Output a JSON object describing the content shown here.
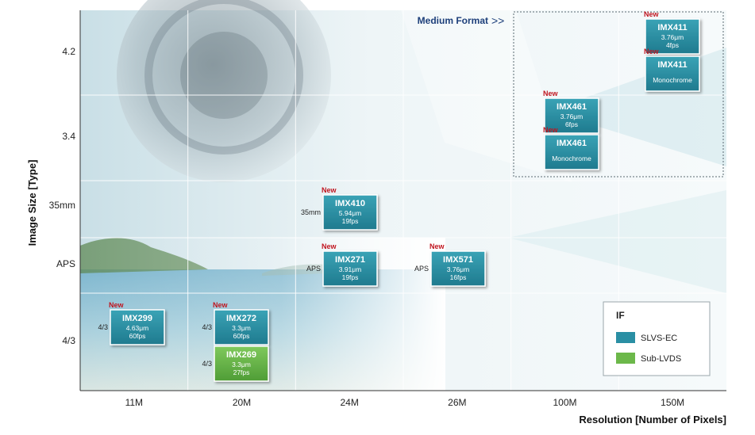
{
  "chart_data": {
    "type": "table",
    "xlabel": "Resolution  [Number of Pixels]",
    "ylabel": "Image Size [Type]",
    "x_categories": [
      "11M",
      "20M",
      "24M",
      "26M",
      "100M",
      "150M"
    ],
    "y_categories": [
      "4.2",
      "3.4",
      "35mm",
      "APS",
      "4/3"
    ],
    "grid": true,
    "medium_format_label": "Medium Format",
    "medium_format_arrow": ">>",
    "new_label": "New",
    "sensors": [
      {
        "name": "IMX411",
        "detail": [
          "3.76μm",
          "4fps"
        ],
        "resolution": "150M",
        "size": "4.2",
        "slot": 0,
        "interface": "SLVS-EC",
        "is_new": true,
        "side_label": ""
      },
      {
        "name": "IMX411",
        "detail": [
          "Monochrome"
        ],
        "resolution": "150M",
        "size": "4.2",
        "slot": 1,
        "interface": "SLVS-EC",
        "is_new": true,
        "side_label": ""
      },
      {
        "name": "IMX461",
        "detail": [
          "3.76μm",
          "6fps"
        ],
        "resolution": "100M",
        "size": "3.4",
        "slot": 0,
        "interface": "SLVS-EC",
        "is_new": true,
        "side_label": ""
      },
      {
        "name": "IMX461",
        "detail": [
          "Monochrome"
        ],
        "resolution": "100M",
        "size": "3.4",
        "slot": 1,
        "interface": "SLVS-EC",
        "is_new": true,
        "side_label": ""
      },
      {
        "name": "IMX410",
        "detail": [
          "5.94μm",
          "19fps"
        ],
        "resolution": "24M",
        "size": "35mm",
        "slot": 0,
        "interface": "SLVS-EC",
        "is_new": true,
        "side_label": "35mm"
      },
      {
        "name": "IMX271",
        "detail": [
          "3.91μm",
          "19fps"
        ],
        "resolution": "24M",
        "size": "APS",
        "slot": 0,
        "interface": "SLVS-EC",
        "is_new": true,
        "side_label": "APS"
      },
      {
        "name": "IMX571",
        "detail": [
          "3.76μm",
          "16fps"
        ],
        "resolution": "26M",
        "size": "APS",
        "slot": 0,
        "interface": "SLVS-EC",
        "is_new": true,
        "side_label": "APS"
      },
      {
        "name": "IMX299",
        "detail": [
          "4.63μm",
          "60fps"
        ],
        "resolution": "11M",
        "size": "4/3",
        "slot": 0,
        "interface": "SLVS-EC",
        "is_new": true,
        "side_label": "4/3"
      },
      {
        "name": "IMX272",
        "detail": [
          "3.3μm",
          "60fps"
        ],
        "resolution": "20M",
        "size": "4/3",
        "slot": 0,
        "interface": "SLVS-EC",
        "is_new": true,
        "side_label": "4/3"
      },
      {
        "name": "IMX269",
        "detail": [
          "3.3μm",
          "27fps"
        ],
        "resolution": "20M",
        "size": "4/3",
        "slot": 1,
        "interface": "Sub-LVDS",
        "is_new": false,
        "side_label": "4/3"
      }
    ],
    "legend": {
      "title": "IF",
      "placement": "bottom-right",
      "entries": [
        {
          "label": "SLVS-EC",
          "color": "#2a8fa4"
        },
        {
          "label": "Sub-LVDS",
          "color": "#6cb84a"
        }
      ]
    }
  },
  "colors": {
    "slvs_ec": "#2a8fa4",
    "sub_lvds": "#6cb84a",
    "new": "#c0141e",
    "medium_format": "#1d3f7a"
  }
}
